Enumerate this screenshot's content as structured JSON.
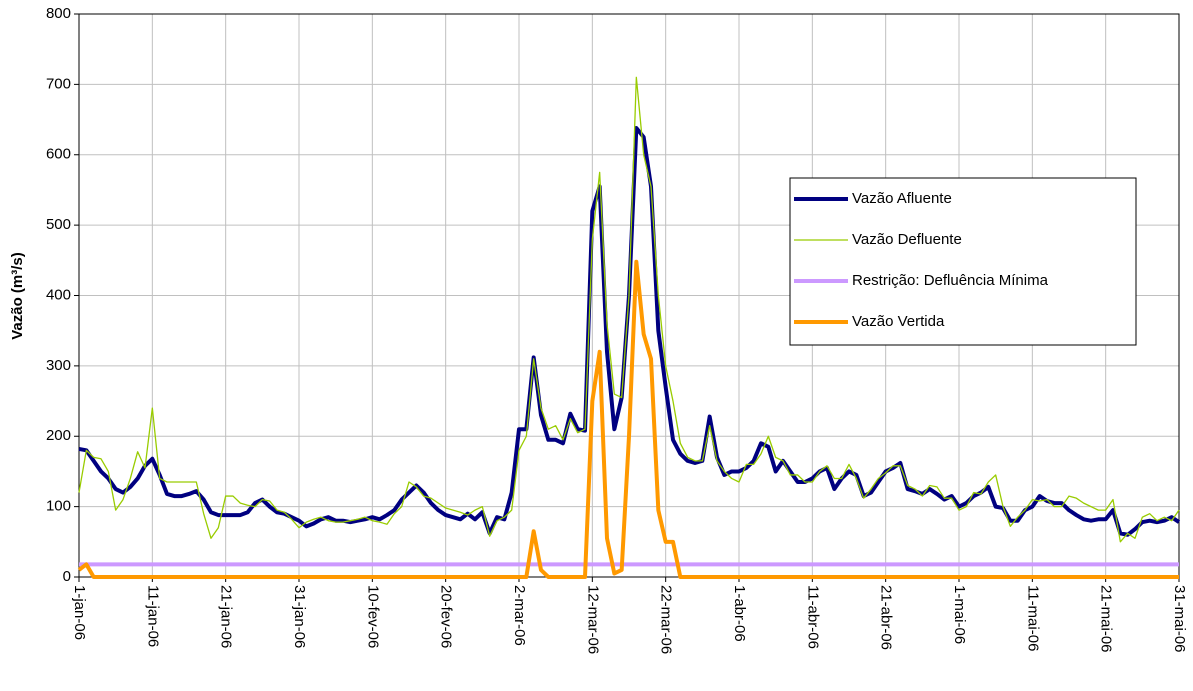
{
  "chart_data": {
    "type": "line",
    "ylabel": "Vazão (m³/s)",
    "categories": [
      "1-jan-06",
      null,
      null,
      null,
      null,
      null,
      null,
      null,
      null,
      null,
      "11-jan-06",
      null,
      null,
      null,
      null,
      null,
      null,
      null,
      null,
      null,
      "21-jan-06",
      null,
      null,
      null,
      null,
      null,
      null,
      null,
      null,
      null,
      "31-jan-06",
      null,
      null,
      null,
      null,
      null,
      null,
      null,
      null,
      null,
      "10-fev-06",
      null,
      null,
      null,
      null,
      null,
      null,
      null,
      null,
      null,
      "20-fev-06",
      null,
      null,
      null,
      null,
      null,
      null,
      null,
      null,
      null,
      "2-mar-06",
      null,
      null,
      null,
      null,
      null,
      null,
      null,
      null,
      null,
      "12-mar-06",
      null,
      null,
      null,
      null,
      null,
      null,
      null,
      null,
      null,
      "22-mar-06",
      null,
      null,
      null,
      null,
      null,
      null,
      null,
      null,
      null,
      "1-abr-06",
      null,
      null,
      null,
      null,
      null,
      null,
      null,
      null,
      null,
      "11-abr-06",
      null,
      null,
      null,
      null,
      null,
      null,
      null,
      null,
      null,
      "21-abr-06",
      null,
      null,
      null,
      null,
      null,
      null,
      null,
      null,
      null,
      "1-mai-06",
      null,
      null,
      null,
      null,
      null,
      null,
      null,
      null,
      null,
      "11-mai-06",
      null,
      null,
      null,
      null,
      null,
      null,
      null,
      null,
      null,
      "21-mai-06",
      null,
      null,
      null,
      null,
      null,
      null,
      null,
      null,
      null,
      "31-mai-06"
    ],
    "series": [
      {
        "name": "Vazão Afluente",
        "color": "#000080",
        "width": 4,
        "values": [
          182,
          180,
          165,
          150,
          140,
          125,
          120,
          128,
          140,
          158,
          168,
          145,
          118,
          115,
          115,
          118,
          122,
          110,
          92,
          88,
          88,
          88,
          88,
          92,
          105,
          110,
          100,
          92,
          90,
          85,
          80,
          72,
          76,
          82,
          85,
          80,
          80,
          78,
          80,
          82,
          85,
          82,
          88,
          95,
          110,
          120,
          130,
          120,
          105,
          95,
          88,
          85,
          82,
          90,
          82,
          92,
          62,
          85,
          82,
          120,
          210,
          210,
          312,
          230,
          195,
          195,
          190,
          232,
          210,
          208,
          520,
          555,
          320,
          210,
          255,
          400,
          638,
          625,
          555,
          350,
          270,
          195,
          175,
          165,
          162,
          165,
          228,
          170,
          145,
          150,
          150,
          155,
          165,
          190,
          185,
          150,
          165,
          150,
          135,
          135,
          140,
          150,
          155,
          125,
          140,
          150,
          145,
          115,
          120,
          135,
          150,
          155,
          162,
          125,
          122,
          118,
          125,
          118,
          110,
          115,
          100,
          105,
          115,
          120,
          128,
          100,
          98,
          80,
          80,
          95,
          100,
          115,
          108,
          105,
          105,
          95,
          88,
          82,
          80,
          82,
          82,
          95,
          62,
          60,
          68,
          78,
          80,
          78,
          80,
          85,
          78
        ]
      },
      {
        "name": "Vazão Defluente",
        "color": "#99cc00",
        "width": 1.3,
        "values": [
          120,
          180,
          170,
          168,
          150,
          95,
          110,
          140,
          178,
          155,
          240,
          140,
          135,
          135,
          135,
          135,
          135,
          90,
          55,
          70,
          115,
          115,
          105,
          102,
          100,
          110,
          108,
          95,
          92,
          82,
          70,
          78,
          82,
          85,
          80,
          78,
          78,
          80,
          82,
          85,
          80,
          78,
          75,
          90,
          100,
          135,
          128,
          115,
          112,
          105,
          98,
          95,
          92,
          88,
          95,
          100,
          58,
          80,
          85,
          95,
          180,
          200,
          310,
          240,
          210,
          215,
          195,
          225,
          205,
          210,
          480,
          575,
          360,
          260,
          255,
          400,
          710,
          600,
          555,
          400,
          300,
          250,
          190,
          170,
          165,
          165,
          215,
          165,
          150,
          140,
          135,
          160,
          160,
          175,
          200,
          170,
          165,
          145,
          145,
          135,
          135,
          150,
          158,
          140,
          140,
          160,
          140,
          112,
          125,
          140,
          148,
          158,
          158,
          130,
          125,
          115,
          130,
          128,
          112,
          112,
          95,
          100,
          120,
          118,
          135,
          145,
          100,
          72,
          85,
          95,
          110,
          108,
          110,
          100,
          100,
          115,
          112,
          105,
          100,
          95,
          95,
          110,
          50,
          62,
          55,
          85,
          90,
          80,
          85,
          80,
          95
        ]
      },
      {
        "name": "Restrição: Defluência Mínima",
        "color": "#cc99ff",
        "width": 4,
        "values": [
          18,
          18,
          18,
          18,
          18,
          18,
          18,
          18,
          18,
          18,
          18,
          18,
          18,
          18,
          18,
          18,
          18,
          18,
          18,
          18,
          18,
          18,
          18,
          18,
          18,
          18,
          18,
          18,
          18,
          18,
          18,
          18,
          18,
          18,
          18,
          18,
          18,
          18,
          18,
          18,
          18,
          18,
          18,
          18,
          18,
          18,
          18,
          18,
          18,
          18,
          18,
          18,
          18,
          18,
          18,
          18,
          18,
          18,
          18,
          18,
          18,
          18,
          18,
          18,
          18,
          18,
          18,
          18,
          18,
          18,
          18,
          18,
          18,
          18,
          18,
          18,
          18,
          18,
          18,
          18,
          18,
          18,
          18,
          18,
          18,
          18,
          18,
          18,
          18,
          18,
          18,
          18,
          18,
          18,
          18,
          18,
          18,
          18,
          18,
          18,
          18,
          18,
          18,
          18,
          18,
          18,
          18,
          18,
          18,
          18,
          18,
          18,
          18,
          18,
          18,
          18,
          18,
          18,
          18,
          18,
          18,
          18,
          18,
          18,
          18,
          18,
          18,
          18,
          18,
          18,
          18,
          18,
          18,
          18,
          18,
          18,
          18,
          18,
          18,
          18,
          18,
          18,
          18,
          18,
          18,
          18,
          18,
          18,
          18,
          18,
          18
        ]
      },
      {
        "name": "Vazão Vertida",
        "color": "#ff9900",
        "width": 4,
        "values": [
          10,
          18,
          0,
          0,
          0,
          0,
          0,
          0,
          0,
          0,
          0,
          0,
          0,
          0,
          0,
          0,
          0,
          0,
          0,
          0,
          0,
          0,
          0,
          0,
          0,
          0,
          0,
          0,
          0,
          0,
          0,
          0,
          0,
          0,
          0,
          0,
          0,
          0,
          0,
          0,
          0,
          0,
          0,
          0,
          0,
          0,
          0,
          0,
          0,
          0,
          0,
          0,
          0,
          0,
          0,
          0,
          0,
          0,
          0,
          0,
          0,
          0,
          65,
          10,
          0,
          0,
          0,
          0,
          0,
          0,
          250,
          320,
          55,
          5,
          10,
          200,
          448,
          345,
          310,
          95,
          50,
          50,
          0,
          0,
          0,
          0,
          0,
          0,
          0,
          0,
          0,
          0,
          0,
          0,
          0,
          0,
          0,
          0,
          0,
          0,
          0,
          0,
          0,
          0,
          0,
          0,
          0,
          0,
          0,
          0,
          0,
          0,
          0,
          0,
          0,
          0,
          0,
          0,
          0,
          0,
          0,
          0,
          0,
          0,
          0,
          0,
          0,
          0,
          0,
          0,
          0,
          0,
          0,
          0,
          0,
          0,
          0,
          0,
          0,
          0,
          0,
          0,
          0,
          0,
          0,
          0,
          0,
          0,
          0,
          0,
          0
        ]
      }
    ],
    "ylim": [
      0,
      800
    ],
    "yticks": [
      0,
      100,
      200,
      300,
      400,
      500,
      600,
      700,
      800
    ],
    "grid": true,
    "legend": "right"
  }
}
